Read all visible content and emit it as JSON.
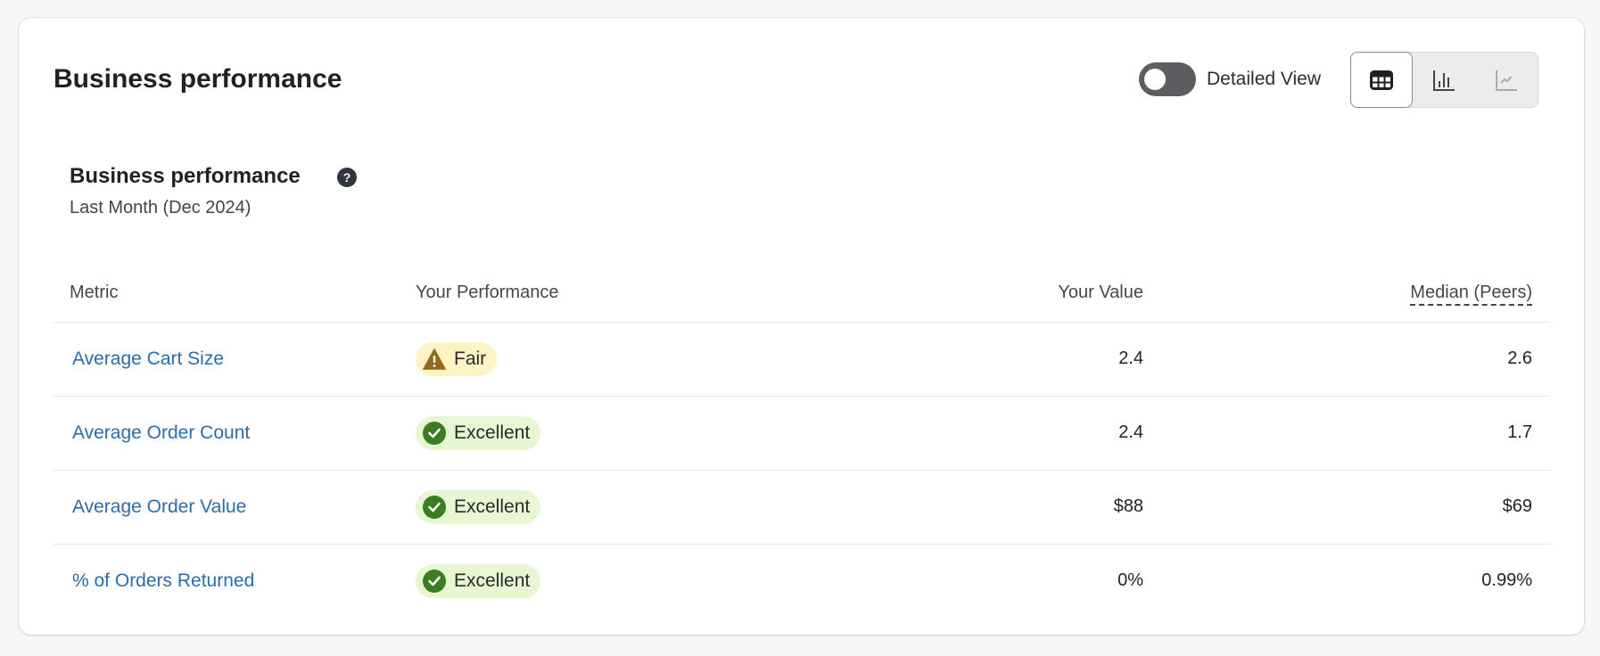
{
  "header": {
    "title": "Business performance",
    "toggle_label": "Detailed View",
    "toggle_on": false,
    "view_modes": [
      {
        "name": "table",
        "icon": "table-icon",
        "active": true
      },
      {
        "name": "bar",
        "icon": "bar-chart-icon",
        "active": false
      },
      {
        "name": "line",
        "icon": "line-chart-icon",
        "active": false
      }
    ]
  },
  "section": {
    "title": "Business performance",
    "help_icon": "?",
    "subtitle": "Last Month (Dec 2024)"
  },
  "table": {
    "columns": [
      "Metric",
      "Your Performance",
      "Your Value",
      "Median (Peers)"
    ],
    "rows": [
      {
        "metric": "Average Cart Size",
        "performance": "Fair",
        "status": "fair",
        "value": "2.4",
        "median": "2.6"
      },
      {
        "metric": "Average Order Count",
        "performance": "Excellent",
        "status": "excellent",
        "value": "2.4",
        "median": "1.7"
      },
      {
        "metric": "Average Order Value",
        "performance": "Excellent",
        "status": "excellent",
        "value": "$88",
        "median": "$69"
      },
      {
        "metric": "% of Orders Returned",
        "performance": "Excellent",
        "status": "excellent",
        "value": "0%",
        "median": "0.99%"
      }
    ]
  },
  "colors": {
    "link": "#2e6ca8",
    "fair_bg": "#fdf3c4",
    "fair_icon": "#8f6a1a",
    "excellent_bg": "#e7f7d2",
    "excellent_icon": "#3a7d23"
  }
}
